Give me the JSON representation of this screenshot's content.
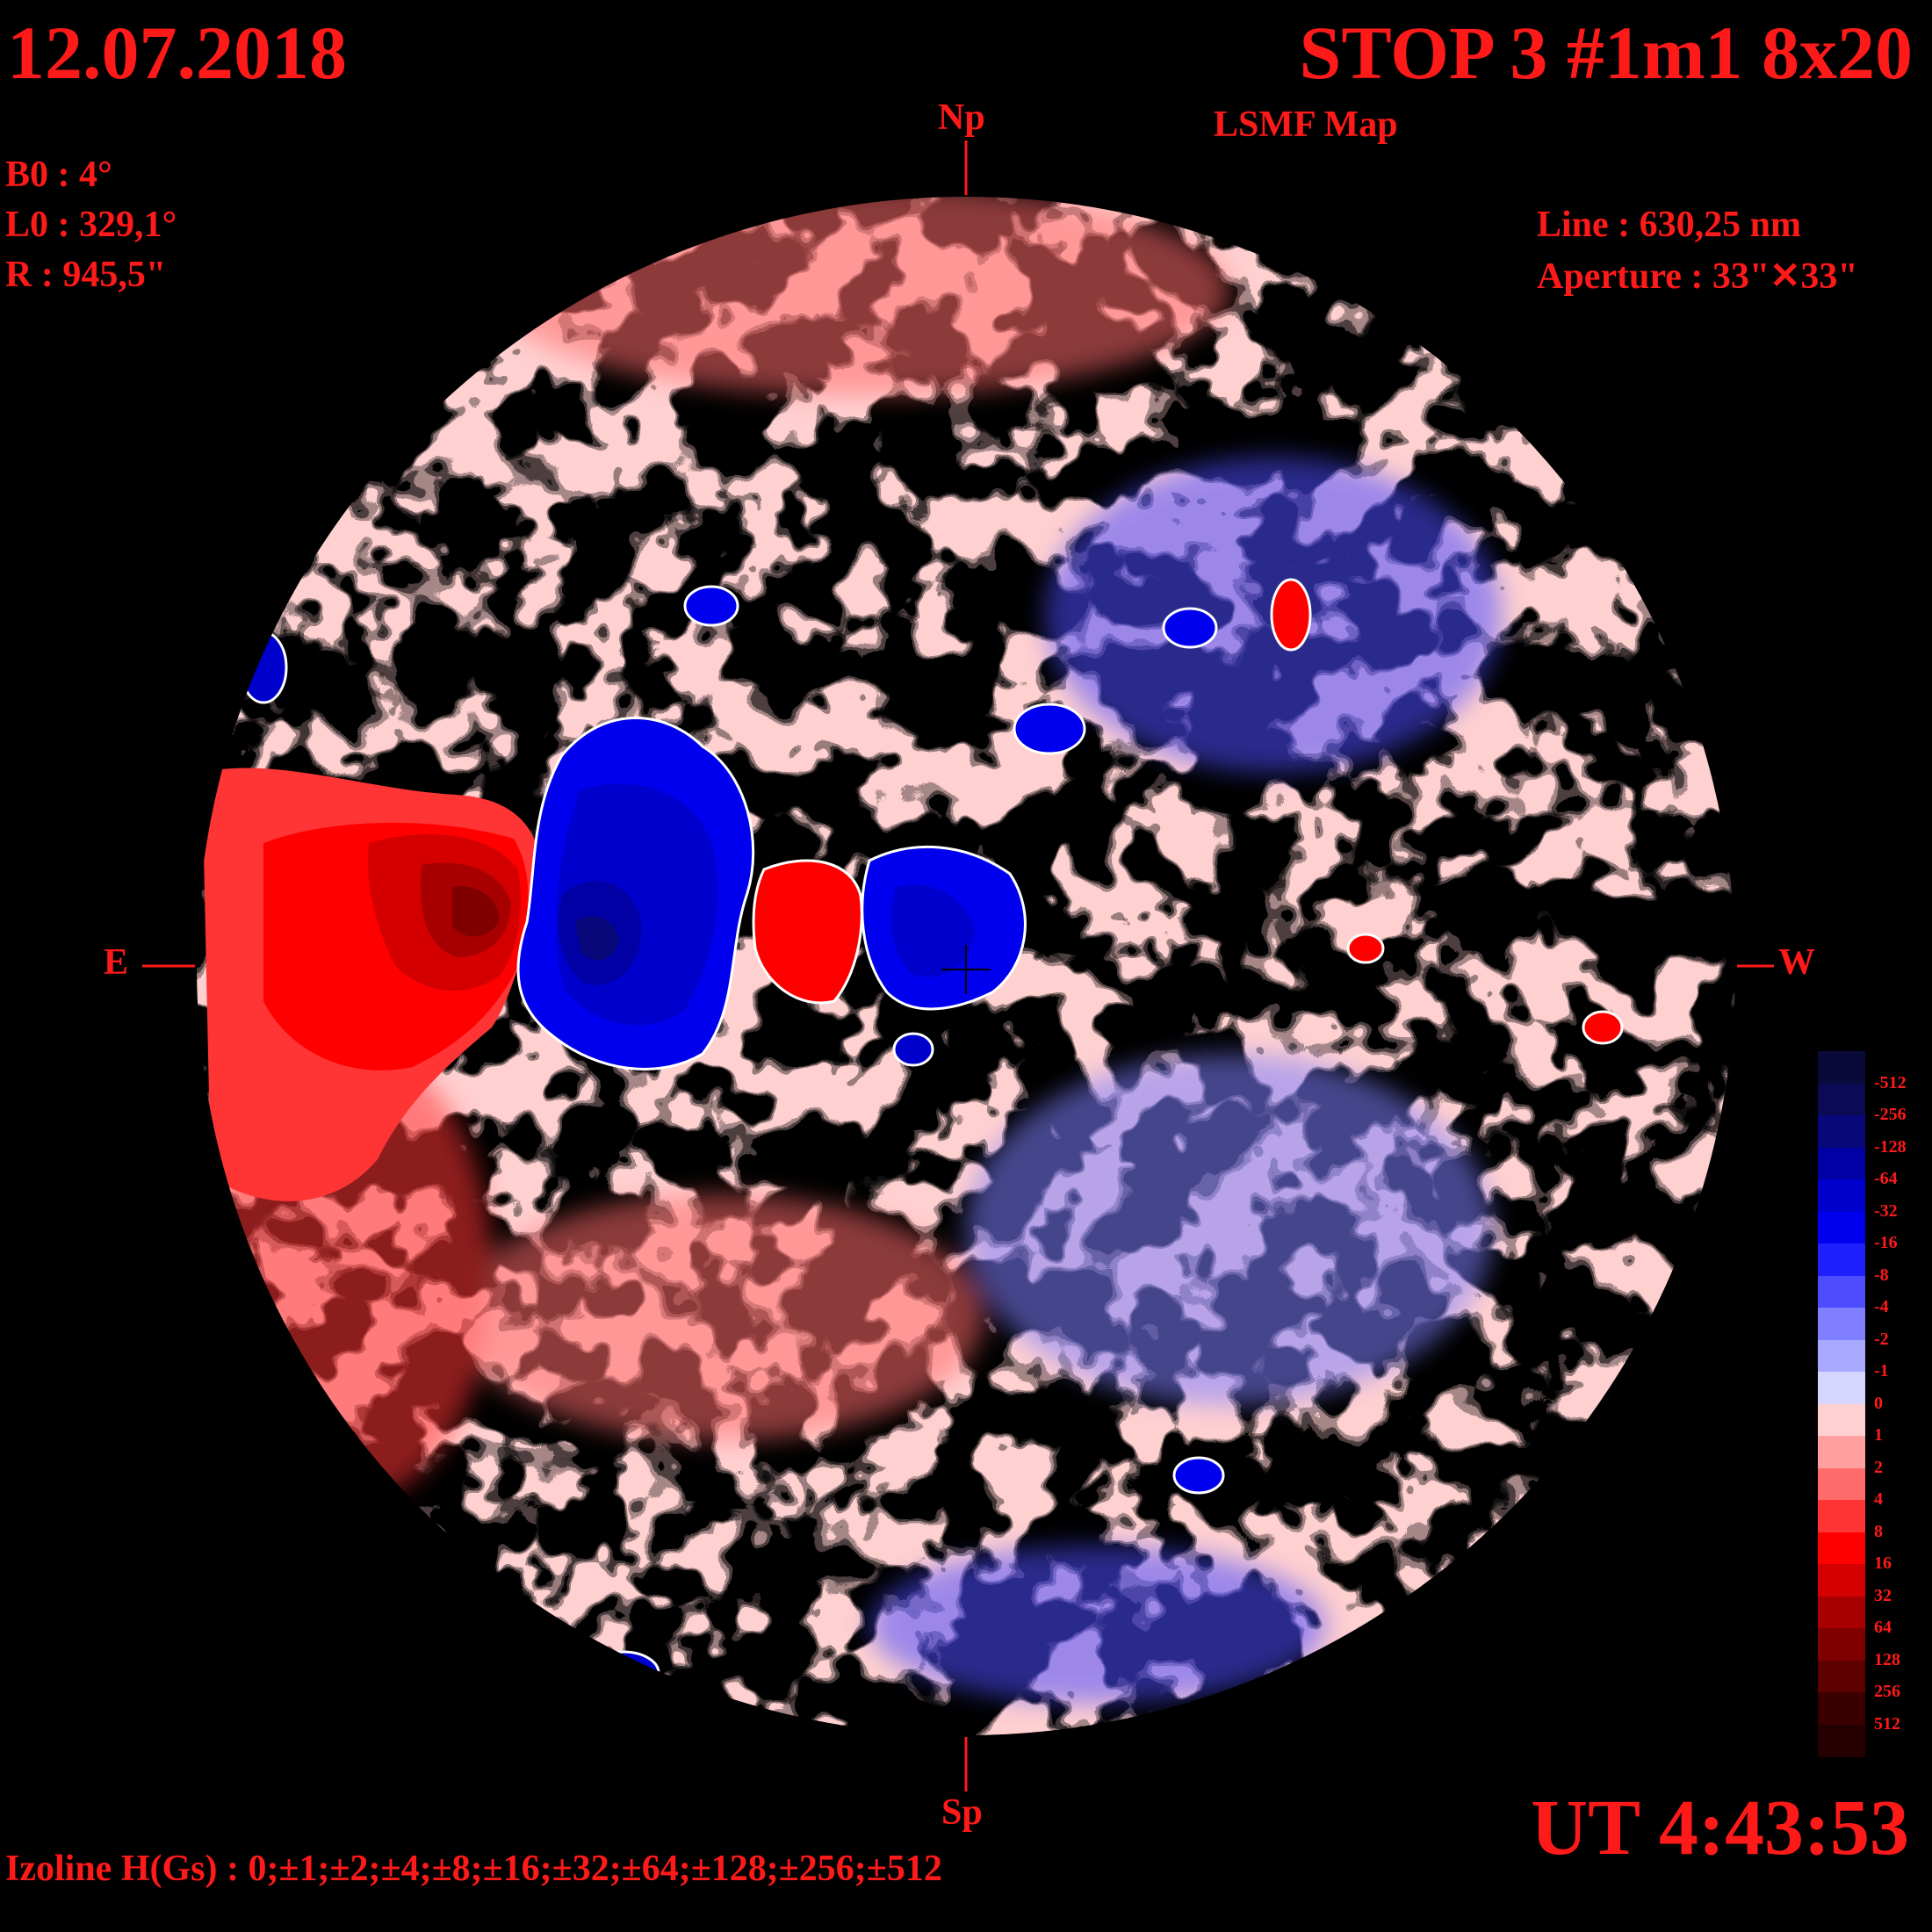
{
  "header": {
    "date": "12.07.2018",
    "title": "STOP 3 #1m1 8x20",
    "subtitle": "LSMF  Map"
  },
  "params": {
    "b0": "B0 : 4°",
    "l0": "L0 : 329,1°",
    "radius": "R  : 945,5\"",
    "line": "Line :  630,25 nm",
    "aperture": "Aperture : 33\"✕33\""
  },
  "compass": {
    "north": "Np",
    "south": "Sp",
    "east": "E",
    "west": "W"
  },
  "time": "UT 4:43:53",
  "izoline": "Izoline H(Gs) : 0;±1;±2;±4;±8;±16;±32;±64;±128;±256;±512",
  "legend": {
    "levels": [
      {
        "label": "-512",
        "color": "#0a0a3a"
      },
      {
        "label": "-256",
        "color": "#0b0b55"
      },
      {
        "label": "-128",
        "color": "#08087a"
      },
      {
        "label": "-64",
        "color": "#0000a5"
      },
      {
        "label": "-32",
        "color": "#0000cc"
      },
      {
        "label": "-16",
        "color": "#0000ee"
      },
      {
        "label": "-8",
        "color": "#2020ff"
      },
      {
        "label": "-4",
        "color": "#4d4dff"
      },
      {
        "label": "-2",
        "color": "#7f7fff"
      },
      {
        "label": "-1",
        "color": "#a9a9ff"
      },
      {
        "label": "0",
        "color": "#d5d5ff"
      },
      {
        "label": "1",
        "color": "#ffd0d0"
      },
      {
        "label": "2",
        "color": "#ff9f9f"
      },
      {
        "label": "4",
        "color": "#ff6b6b"
      },
      {
        "label": "8",
        "color": "#ff3434"
      },
      {
        "label": "16",
        "color": "#ff0000"
      },
      {
        "label": "32",
        "color": "#d40000"
      },
      {
        "label": "64",
        "color": "#a80000"
      },
      {
        "label": "128",
        "color": "#800000"
      },
      {
        "label": "256",
        "color": "#5c0000"
      },
      {
        "label": "512",
        "color": "#3a0000"
      },
      {
        "label": "",
        "color": "#240000"
      }
    ]
  },
  "colors": {
    "text": "#ff1a1a",
    "background": "#000000",
    "isoline": "#ffffff"
  }
}
